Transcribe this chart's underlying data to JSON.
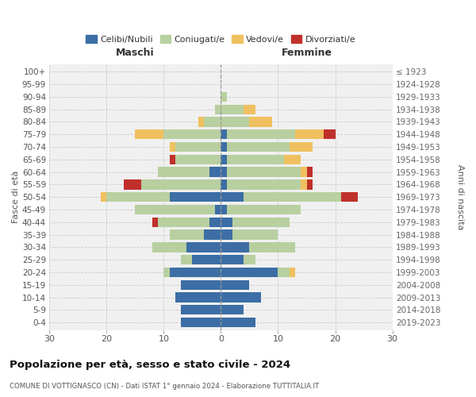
{
  "age_groups": [
    "0-4",
    "5-9",
    "10-14",
    "15-19",
    "20-24",
    "25-29",
    "30-34",
    "35-39",
    "40-44",
    "45-49",
    "50-54",
    "55-59",
    "60-64",
    "65-69",
    "70-74",
    "75-79",
    "80-84",
    "85-89",
    "90-94",
    "95-99",
    "100+"
  ],
  "birth_years": [
    "2019-2023",
    "2014-2018",
    "2009-2013",
    "2004-2008",
    "1999-2003",
    "1994-1998",
    "1989-1993",
    "1984-1988",
    "1979-1983",
    "1974-1978",
    "1969-1973",
    "1964-1968",
    "1959-1963",
    "1954-1958",
    "1949-1953",
    "1944-1948",
    "1939-1943",
    "1934-1938",
    "1929-1933",
    "1924-1928",
    "≤ 1923"
  ],
  "male": {
    "celibi": [
      7,
      7,
      8,
      7,
      9,
      5,
      6,
      3,
      2,
      1,
      9,
      0,
      2,
      0,
      0,
      0,
      0,
      0,
      0,
      0,
      0
    ],
    "coniugati": [
      0,
      0,
      0,
      0,
      1,
      2,
      6,
      6,
      9,
      14,
      11,
      14,
      9,
      8,
      8,
      10,
      3,
      1,
      0,
      0,
      0
    ],
    "vedovi": [
      0,
      0,
      0,
      0,
      0,
      0,
      0,
      0,
      0,
      0,
      1,
      0,
      0,
      0,
      1,
      5,
      1,
      0,
      0,
      0,
      0
    ],
    "divorziati": [
      0,
      0,
      0,
      0,
      0,
      0,
      0,
      0,
      1,
      0,
      0,
      3,
      0,
      1,
      0,
      0,
      0,
      0,
      0,
      0,
      0
    ]
  },
  "female": {
    "nubili": [
      6,
      4,
      7,
      5,
      10,
      4,
      5,
      2,
      2,
      1,
      4,
      1,
      1,
      1,
      1,
      1,
      0,
      0,
      0,
      0,
      0
    ],
    "coniugate": [
      0,
      0,
      0,
      0,
      2,
      2,
      8,
      8,
      10,
      13,
      17,
      13,
      13,
      10,
      11,
      12,
      5,
      4,
      1,
      0,
      0
    ],
    "vedove": [
      0,
      0,
      0,
      0,
      1,
      0,
      0,
      0,
      0,
      0,
      0,
      1,
      1,
      3,
      4,
      5,
      4,
      2,
      0,
      0,
      0
    ],
    "divorziate": [
      0,
      0,
      0,
      0,
      0,
      0,
      0,
      0,
      0,
      0,
      3,
      1,
      1,
      0,
      0,
      2,
      0,
      0,
      0,
      0,
      0
    ]
  },
  "colors": {
    "celibi_nubili": "#3c6ea5",
    "coniugati": "#b8cfa0",
    "vedovi": "#f0c060",
    "divorziati": "#c0302a"
  },
  "title": "Popolazione per età, sesso e stato civile - 2024",
  "subtitle": "COMUNE DI VOTTIGNASCO (CN) - Dati ISTAT 1° gennaio 2024 - Elaborazione TUTTITALIA.IT",
  "xlabel_left": "Maschi",
  "xlabel_right": "Femmine",
  "ylabel_left": "Fasce di età",
  "ylabel_right": "Anni di nascita",
  "xlim": 30,
  "bg_color": "#ffffff",
  "plot_bg": "#f0f0f0",
  "grid_color": "#cccccc",
  "legend_labels": [
    "Celibi/Nubili",
    "Coniugati/e",
    "Vedovi/e",
    "Divorziati/e"
  ]
}
